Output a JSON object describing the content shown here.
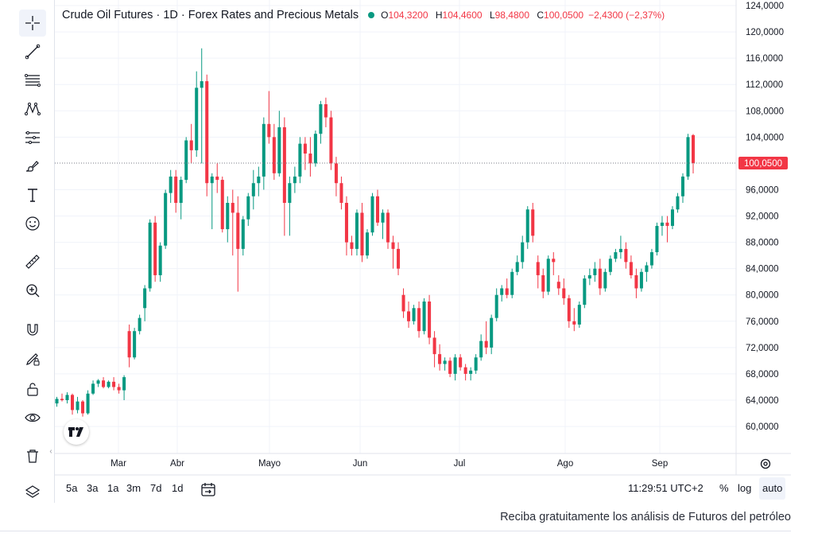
{
  "legend": {
    "title": "Crude Oil Futures · 1D · Forex Rates and Precious Metals",
    "o_label": "O",
    "o_value": "104,3200",
    "h_label": "H",
    "h_value": "104,4600",
    "l_label": "L",
    "l_value": "98,4800",
    "c_label": "C",
    "c_value": "100,0500",
    "change": "−2,4300 (−2,37%)"
  },
  "bottom": {
    "ranges": [
      "5a",
      "3a",
      "1a",
      "3m",
      "7d",
      "1d"
    ],
    "clock": "11:29:51 UTC+2",
    "pct": "%",
    "log": "log",
    "auto": "auto"
  },
  "footer": {
    "link": "Reciba gratuitamente los análisis de Futuros del petróleo"
  },
  "tools": [
    {
      "name": "crosshair-icon"
    },
    {
      "name": "trend-line-icon"
    },
    {
      "name": "fib-retracement-icon"
    },
    {
      "name": "pattern-icon"
    },
    {
      "name": "prediction-icon"
    },
    {
      "name": "brush-icon"
    },
    {
      "name": "text-icon"
    },
    {
      "name": "emoji-icon"
    },
    {
      "name": "ruler-icon"
    },
    {
      "name": "zoom-in-icon"
    },
    {
      "name": "magnet-icon"
    },
    {
      "name": "lock-drawing-icon"
    },
    {
      "name": "unlock-icon"
    },
    {
      "name": "eye-icon"
    },
    {
      "name": "trash-icon"
    },
    {
      "name": "layers-icon"
    }
  ],
  "colors": {
    "up": "#089981",
    "down": "#f23645",
    "grid": "#f0f3fa",
    "text": "#131722"
  },
  "chart_data": {
    "type": "candlestick",
    "price_label": "100,0500",
    "ylim": [
      56,
      124
    ],
    "y_ticks": [
      "60,0000",
      "64,0000",
      "68,0000",
      "72,0000",
      "76,0000",
      "80,0000",
      "84,0000",
      "88,0000",
      "92,0000",
      "96,0000",
      "104,0000",
      "108,0000",
      "112,0000",
      "116,0000",
      "120,0000",
      "124,0000"
    ],
    "y_tick_values": [
      60,
      64,
      68,
      72,
      76,
      80,
      84,
      88,
      92,
      96,
      104,
      108,
      112,
      116,
      120,
      124
    ],
    "x_ticks": [
      "Mar",
      "Abr",
      "Mayo",
      "Jun",
      "Jul",
      "Ago",
      "Sep"
    ],
    "grid": true,
    "candles": [
      [
        63.5,
        64.5,
        63,
        64.2
      ],
      [
        64.2,
        65,
        63.8,
        64
      ],
      [
        64,
        65.2,
        63.5,
        64.8
      ],
      [
        64.8,
        65,
        61.8,
        62.5
      ],
      [
        62.5,
        64.5,
        62,
        63.8
      ],
      [
        63.8,
        64,
        61.5,
        62
      ],
      [
        62,
        65.5,
        61.8,
        65
      ],
      [
        65,
        67,
        64.8,
        66.5
      ],
      [
        66.5,
        67.2,
        66,
        67
      ],
      [
        67,
        67.5,
        65.8,
        66
      ],
      [
        66,
        67,
        65.8,
        66.8
      ],
      [
        66.8,
        67.5,
        65.5,
        66
      ],
      [
        66,
        66.5,
        65,
        65.5
      ],
      [
        65.5,
        67.8,
        64,
        67.5
      ],
      [
        74.5,
        75.5,
        69,
        70.5
      ],
      [
        70.5,
        75,
        70.2,
        74.5
      ],
      [
        74.5,
        77,
        74,
        76.5
      ],
      [
        78,
        81.5,
        76,
        81
      ],
      [
        81,
        91.5,
        80.5,
        91
      ],
      [
        91,
        92,
        82,
        83
      ],
      [
        83,
        88,
        82,
        87.5
      ],
      [
        87.5,
        96,
        87,
        95.5
      ],
      [
        95.5,
        99,
        94,
        98
      ],
      [
        98,
        99,
        92.5,
        94
      ],
      [
        94,
        98,
        91.5,
        97.5
      ],
      [
        97.5,
        104,
        97,
        103.5
      ],
      [
        103.5,
        106,
        100,
        102
      ],
      [
        102,
        114,
        101,
        111.5
      ],
      [
        111.5,
        117.5,
        100,
        112.5
      ],
      [
        112.5,
        113.5,
        95,
        97
      ],
      [
        97,
        98.5,
        90,
        98
      ],
      [
        98,
        100,
        95.5,
        97.5
      ],
      [
        97.5,
        98,
        89.5,
        90
      ],
      [
        90,
        95,
        88,
        94
      ],
      [
        94,
        96,
        86,
        92.5
      ],
      [
        92.5,
        95,
        80.5,
        87
      ],
      [
        87,
        92,
        86,
        91.5
      ],
      [
        91.5,
        95.5,
        90.5,
        95
      ],
      [
        95,
        99,
        93,
        97
      ],
      [
        97,
        99.5,
        95,
        98
      ],
      [
        98,
        107,
        96,
        106
      ],
      [
        106,
        111,
        103,
        104
      ],
      [
        104,
        106,
        97.5,
        98.5
      ],
      [
        98.5,
        108,
        98,
        105.5
      ],
      [
        105.5,
        107,
        89,
        94
      ],
      [
        94,
        98,
        89,
        97
      ],
      [
        97,
        99.5,
        95.5,
        98
      ],
      [
        98,
        104,
        97,
        103
      ],
      [
        103,
        104,
        99,
        101.5
      ],
      [
        101.5,
        104,
        98,
        100
      ],
      [
        100,
        105,
        99.5,
        104.5
      ],
      [
        104.5,
        109.5,
        103,
        109
      ],
      [
        109,
        110,
        105.5,
        107
      ],
      [
        107,
        108,
        99,
        100
      ],
      [
        100,
        101,
        95,
        97
      ],
      [
        97,
        98,
        93,
        94
      ],
      [
        94,
        95,
        86,
        88
      ],
      [
        88,
        89,
        86,
        87
      ],
      [
        87,
        93,
        86,
        92.5
      ],
      [
        92.5,
        94,
        85,
        86
      ],
      [
        86,
        90,
        85.5,
        89.5
      ],
      [
        89.5,
        95.5,
        89,
        95
      ],
      [
        95,
        96,
        90.5,
        91
      ],
      [
        91,
        93,
        88.5,
        92.5
      ],
      [
        92.5,
        93,
        87,
        88
      ],
      [
        88,
        89,
        84,
        87
      ],
      [
        87,
        88,
        83,
        84
      ],
      [
        80,
        81,
        76.5,
        77.5
      ],
      [
        77.5,
        79,
        75,
        76
      ],
      [
        76,
        78.5,
        75.5,
        78
      ],
      [
        78,
        79,
        73.5,
        74.5
      ],
      [
        74.5,
        79.5,
        74,
        79
      ],
      [
        79,
        80,
        72.5,
        73.5
      ],
      [
        73.5,
        74.5,
        69,
        71
      ],
      [
        71,
        72.5,
        68.5,
        69.5
      ],
      [
        69.5,
        70.5,
        68.5,
        70
      ],
      [
        70,
        70.5,
        67.5,
        68
      ],
      [
        68,
        71,
        67,
        70.5
      ],
      [
        70.5,
        71,
        68.5,
        69
      ],
      [
        69,
        69.5,
        67,
        68
      ],
      [
        68,
        69,
        67,
        68.5
      ],
      [
        68.5,
        71,
        68,
        70.5
      ],
      [
        70.5,
        74,
        70,
        73
      ],
      [
        73,
        76,
        71,
        72
      ],
      [
        72,
        77,
        71,
        76.5
      ],
      [
        76.5,
        81,
        76,
        80
      ],
      [
        80,
        81.5,
        79,
        81
      ],
      [
        81,
        82.5,
        79.5,
        80
      ],
      [
        80,
        84,
        79.5,
        83.5
      ],
      [
        83.5,
        86,
        83,
        85
      ],
      [
        85,
        89,
        84,
        88
      ],
      [
        88,
        93.5,
        87,
        93
      ],
      [
        93,
        94,
        88,
        89
      ],
      [
        85,
        86,
        81,
        83
      ],
      [
        83,
        84,
        79.5,
        80.5
      ],
      [
        80.5,
        86,
        80,
        85.5
      ],
      [
        85.5,
        86.5,
        83,
        85
      ],
      [
        82,
        83,
        80,
        81
      ],
      [
        81,
        82.5,
        78.5,
        79.5
      ],
      [
        79.5,
        80,
        75,
        76
      ],
      [
        76,
        78,
        74.5,
        75.5
      ],
      [
        75.5,
        79,
        75,
        78.5
      ],
      [
        78.5,
        83,
        78,
        82.5
      ],
      [
        82.5,
        84,
        81.5,
        83
      ],
      [
        83,
        85,
        82,
        84
      ],
      [
        84,
        85.5,
        80,
        81
      ],
      [
        81,
        84,
        80.5,
        83.5
      ],
      [
        83.5,
        86,
        83,
        85.5
      ],
      [
        85.5,
        87,
        85,
        86.5
      ],
      [
        86.5,
        89,
        85.5,
        87
      ],
      [
        87,
        88,
        84,
        85
      ],
      [
        85,
        86,
        82.5,
        83
      ],
      [
        83,
        84,
        79.5,
        81
      ],
      [
        81,
        84,
        80.5,
        83.5
      ],
      [
        83.5,
        85,
        82,
        84.5
      ],
      [
        84.5,
        87,
        84,
        86.5
      ],
      [
        86.5,
        91,
        86,
        90.5
      ],
      [
        90.5,
        92,
        89,
        91
      ],
      [
        91,
        92,
        88,
        90.5
      ],
      [
        90.5,
        93.5,
        90,
        93
      ],
      [
        93,
        95.5,
        92.5,
        95
      ],
      [
        95,
        98.5,
        94,
        98
      ],
      [
        98,
        104.5,
        97.5,
        104
      ],
      [
        104.3,
        104.46,
        98.48,
        100.05
      ]
    ]
  }
}
